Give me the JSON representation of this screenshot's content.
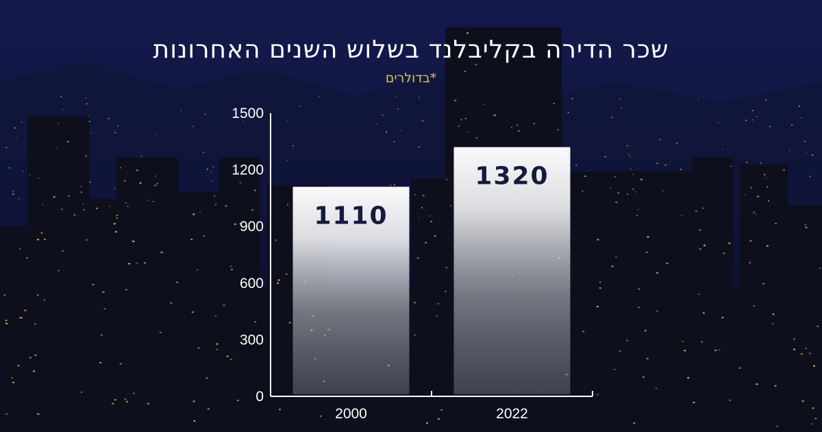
{
  "colors": {
    "sky_top": "#141a4d",
    "sky_bottom": "#0a0d22",
    "building": "#0d0f1c",
    "window_light": "#f2b84a",
    "title": "#ffffff",
    "subtitle": "#e3c24a",
    "bar_fill": "#ffffff",
    "value_text": "#141b3c",
    "axis": "#ffffff"
  },
  "header": {
    "title": "שכר הדירה בקליבלנד בשלוש השנים האחרונות",
    "subtitle": "*בדולרים"
  },
  "chart_data": {
    "type": "bar",
    "title": "שכר הדירה בקליבלנד בשלוש השנים האחרונות",
    "subtitle": "*בדולרים",
    "categories": [
      "2000",
      "2022"
    ],
    "values": [
      1110,
      1320
    ],
    "value_labels": [
      "1110",
      "1320"
    ],
    "ylim": [
      0,
      1500
    ],
    "yticks": [
      0,
      300,
      600,
      900,
      1200,
      1500
    ],
    "ytick_labels": [
      "0",
      "300",
      "600",
      "900",
      "1200",
      "1500"
    ],
    "grid": false,
    "legend": "none"
  }
}
